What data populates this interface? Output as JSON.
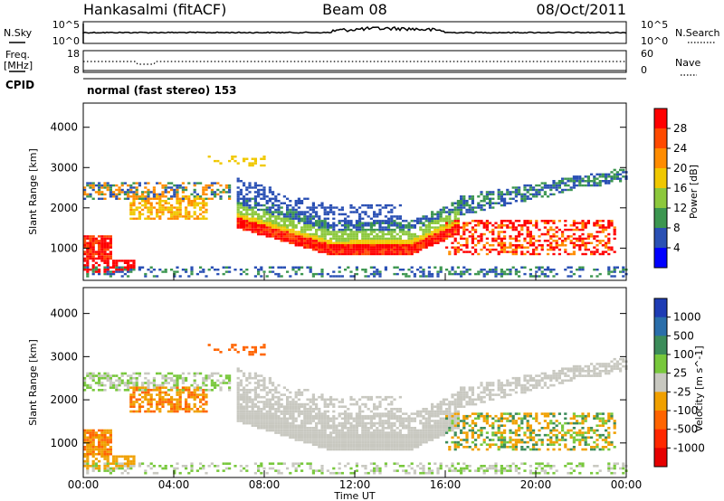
{
  "header": {
    "station": "Hankasalmi (fitACF)",
    "beam": "Beam 08",
    "date": "08/Oct/2011"
  },
  "noise_panel": {
    "left_label": "N.Sky",
    "right_label": "N.Search",
    "left_ticks": [
      "10^5",
      "10^0"
    ],
    "right_ticks": [
      "10^5",
      "10^0"
    ]
  },
  "freq_panel": {
    "left_label_1": "Freq.",
    "left_label_2": "[MHz]",
    "right_label": "Nave",
    "left_ticks": [
      "18",
      "8"
    ],
    "right_ticks": [
      "60",
      "0"
    ]
  },
  "cpid": {
    "label": "CPID",
    "value": "normal (fast stereo) 153"
  },
  "chart_data": [
    {
      "type": "heatmap",
      "quantity": "Power",
      "ylabel": "Slant Range [km]",
      "xlabel": "",
      "ylim": [
        200,
        4600
      ],
      "yticks": [
        1000,
        2000,
        3000,
        4000
      ],
      "colorbar": {
        "label": "Power [dB]",
        "ticks": [
          "28",
          "24",
          "20",
          "16",
          "12",
          "8",
          "4"
        ],
        "colors": [
          "#ff0000",
          "#ff4a00",
          "#ff8c00",
          "#f0c800",
          "#8cc83c",
          "#3c9650",
          "#2a50b4",
          "#0000ff"
        ]
      },
      "features": [
        {
          "name": "main-echo",
          "start_h": 6.7,
          "end_h": 16.5,
          "range_start_km": 1600,
          "range_mid_km": 950,
          "range_end_km": 1050,
          "power_db": 28
        },
        {
          "name": "early-echo",
          "start_h": 0.0,
          "end_h": 1.2,
          "range_km": 1000,
          "power_db": 28
        },
        {
          "name": "evening-echo",
          "start_h": 16.0,
          "end_h": 23.5,
          "range_km": 1100,
          "power_db": 26
        }
      ]
    },
    {
      "type": "heatmap",
      "quantity": "Velocity",
      "ylabel": "Slant Range [km]",
      "xlabel": "Time UT",
      "xticks": [
        "00:00",
        "04:00",
        "08:00",
        "12:00",
        "16:00",
        "20:00",
        "00:00"
      ],
      "ylim": [
        200,
        4600
      ],
      "yticks": [
        1000,
        2000,
        3000,
        4000
      ],
      "colorbar": {
        "label": "Velocity [m s^-1]",
        "ticks": [
          "1000",
          "500",
          "100",
          "25",
          "-25",
          "-100",
          "-500",
          "-1000"
        ],
        "colors": [
          "#1e3cb4",
          "#2a6eaa",
          "#3c8c5a",
          "#78c83c",
          "#c8c8c0",
          "#f0a000",
          "#ff6400",
          "#ff2800",
          "#e60000"
        ]
      },
      "features": [
        {
          "name": "ground-scatter",
          "start_h": 7.0,
          "end_h": 16.5,
          "range_km": 1400,
          "velocity_ms": 0
        },
        {
          "name": "negative-echo",
          "start_h": 16.5,
          "end_h": 20.5,
          "range_km": 1100,
          "velocity_ms": -150
        }
      ]
    }
  ]
}
